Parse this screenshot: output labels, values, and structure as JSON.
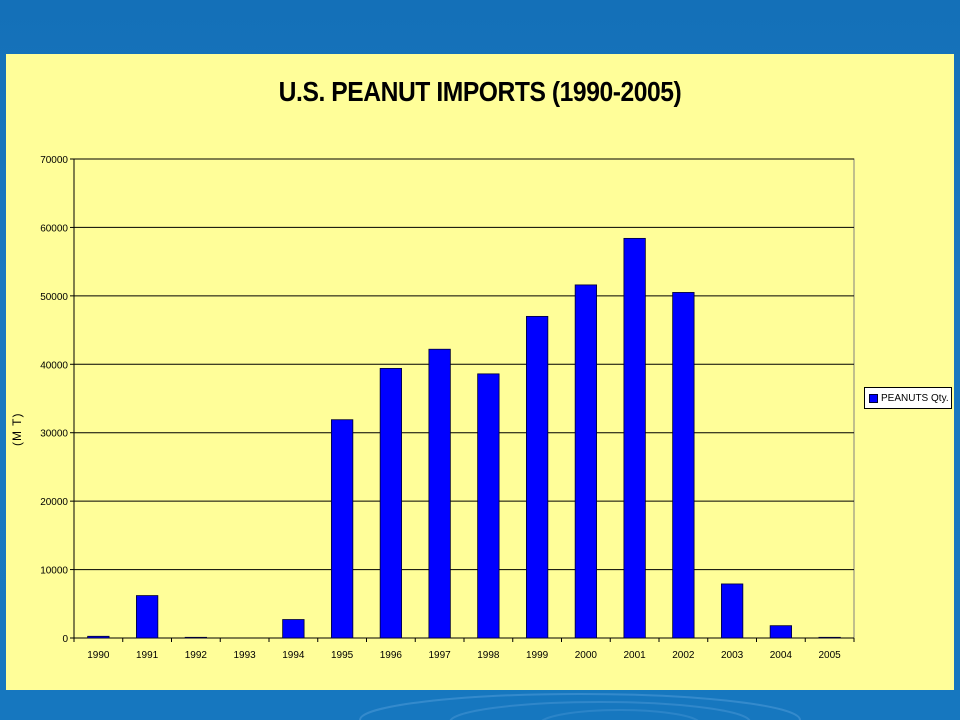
{
  "colors": {
    "background": "#1677bf",
    "panel": "#fffe99",
    "bar": "#0000ff",
    "grid": "#000000"
  },
  "chart_data": {
    "type": "bar",
    "title": "U.S. PEANUT IMPORTS (1990-2005)",
    "xlabel": "",
    "ylabel": "(M T)",
    "categories": [
      "1990",
      "1991",
      "1992",
      "1993",
      "1994",
      "1995",
      "1996",
      "1997",
      "1998",
      "1999",
      "2000",
      "2001",
      "2002",
      "2003",
      "2004",
      "2005"
    ],
    "series": [
      {
        "name": "PEANUTS Qty.",
        "values": [
          250,
          6200,
          100,
          0,
          2700,
          31900,
          39400,
          42200,
          38600,
          47000,
          51600,
          58400,
          50500,
          7900,
          1800,
          100
        ]
      }
    ],
    "ylim": [
      0,
      70000
    ],
    "yticks": [
      "0",
      "10000",
      "20000",
      "30000",
      "40000",
      "50000",
      "60000",
      "70000"
    ],
    "grid": true,
    "legend_position": "right"
  }
}
